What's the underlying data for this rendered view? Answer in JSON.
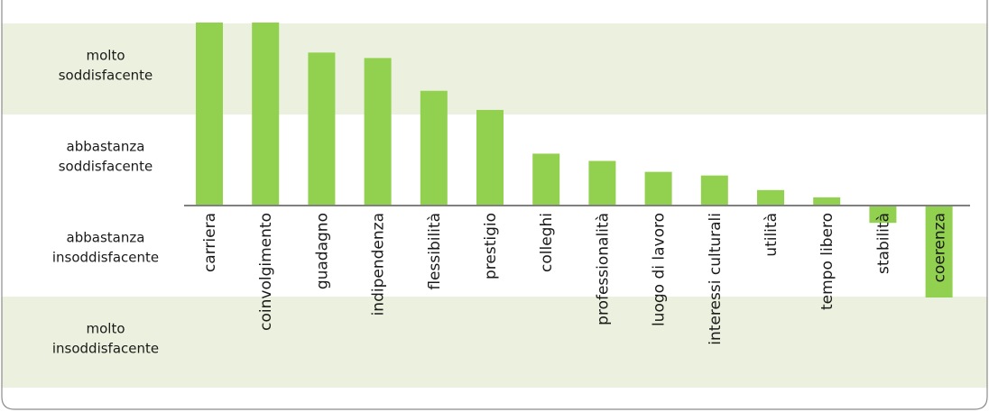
{
  "chart_data": {
    "type": "bar",
    "title": "",
    "xlabel": "",
    "ylabel": "",
    "ylim": [
      -2,
      2
    ],
    "bands": [
      {
        "label_line1": "molto",
        "label_line2": "soddisfacente",
        "from": 1,
        "to": 2,
        "color": "#ebf1de"
      },
      {
        "label_line1": "abbastanza",
        "label_line2": "soddisfacente",
        "from": 0,
        "to": 1,
        "color": "#ffffff"
      },
      {
        "label_line1": "abbastanza",
        "label_line2": "insoddisfacente",
        "from": -1,
        "to": 0,
        "color": "#ffffff"
      },
      {
        "label_line1": "molto",
        "label_line2": "insoddisfacente",
        "from": -2,
        "to": -1,
        "color": "#ebf1de"
      }
    ],
    "categories": [
      "carriera",
      "coinvolgimento",
      "guadagno",
      "indipendenza",
      "flessibilità",
      "prestigio",
      "colleghi",
      "professionalità",
      "luogo di lavoro",
      "interessi culturali",
      "utilità",
      "tempo libero",
      "stabilità",
      "coerenza"
    ],
    "values": [
      2.01,
      2.01,
      1.68,
      1.62,
      1.26,
      1.05,
      0.57,
      0.49,
      0.37,
      0.33,
      0.17,
      0.09,
      -0.19,
      -1.01
    ],
    "bar_color": "#92d050",
    "axis_color": "#808080"
  }
}
